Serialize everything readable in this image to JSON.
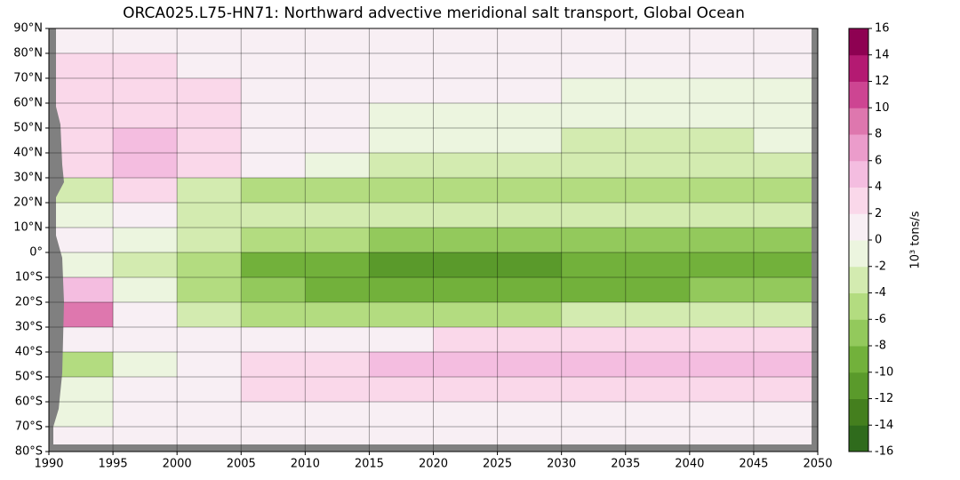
{
  "chart_data": {
    "type": "heatmap",
    "title": "ORCA025.L75-HN71: Northward advective meridional salt transport, Global Ocean",
    "x": [
      1990,
      1995,
      2000,
      2005,
      2010,
      2015,
      2020,
      2025,
      2030,
      2035,
      2040,
      2045,
      2050
    ],
    "y": [
      90,
      80,
      70,
      60,
      50,
      40,
      30,
      20,
      10,
      0,
      -10,
      -20,
      -30,
      -40,
      -50,
      -60,
      -70,
      -80
    ],
    "values": [
      [
        1,
        1,
        1,
        0.5,
        0.5,
        0.5,
        0.5,
        0.5,
        0,
        0,
        0,
        0
      ],
      [
        2,
        2,
        1,
        1,
        1,
        0.5,
        0.5,
        0,
        0,
        0,
        0,
        0
      ],
      [
        2,
        3,
        2,
        1,
        1,
        0,
        0,
        0,
        -1,
        -1,
        -1,
        -1
      ],
      [
        3,
        3,
        2,
        1,
        0,
        -1,
        -1,
        -1,
        -2,
        -2,
        -2,
        -1
      ],
      [
        3,
        4,
        3,
        1,
        0,
        -2,
        -2,
        -2,
        -3,
        -3,
        -3,
        -2
      ],
      [
        3,
        5,
        3,
        0,
        -2,
        -3,
        -3,
        -3,
        -3,
        -4,
        -3,
        -3
      ],
      [
        -4,
        2,
        -4,
        -5,
        -6,
        -5,
        -5,
        -6,
        -6,
        -6,
        -6,
        -6
      ],
      [
        -2,
        1,
        -3,
        -4,
        -4,
        -4,
        -4,
        -4,
        -4,
        -4,
        -4,
        -4
      ],
      [
        0,
        -1,
        -3,
        -5,
        -6,
        -7,
        -7,
        -8,
        -7,
        -7,
        -7,
        -7
      ],
      [
        -2,
        -4,
        -6,
        -9,
        -10,
        -11,
        -11,
        -11,
        -10,
        -10,
        -9,
        -9
      ],
      [
        4,
        -2,
        -6,
        -8,
        -10,
        -10,
        -10,
        -10,
        -9,
        -9,
        -8,
        -8
      ],
      [
        8,
        1,
        -3,
        -5,
        -6,
        -5,
        -5,
        -5,
        -4,
        -4,
        -3,
        -3
      ],
      [
        1,
        0,
        0,
        0,
        1,
        1,
        2,
        2,
        2,
        2,
        2,
        2
      ],
      [
        -5,
        -1,
        1,
        2,
        3,
        4,
        5,
        5,
        4,
        4,
        4,
        4
      ],
      [
        -2,
        0,
        1,
        2,
        3,
        3,
        3,
        3,
        3,
        3,
        3,
        3
      ],
      [
        -1,
        0,
        0,
        1,
        1,
        1,
        1,
        1,
        1,
        1,
        1,
        1
      ],
      [
        0,
        0,
        0,
        0,
        0,
        0,
        0,
        0,
        0,
        0,
        0,
        0
      ]
    ],
    "xlim": [
      1990,
      2050
    ],
    "xticks": [
      1990,
      1995,
      2000,
      2005,
      2010,
      2015,
      2020,
      2025,
      2030,
      2035,
      2040,
      2045,
      2050
    ],
    "ylim": [
      -80,
      90
    ],
    "yticks": [
      {
        "value": 90,
        "label": "90°N"
      },
      {
        "value": 80,
        "label": "80°N"
      },
      {
        "value": 70,
        "label": "70°N"
      },
      {
        "value": 60,
        "label": "60°N"
      },
      {
        "value": 50,
        "label": "50°N"
      },
      {
        "value": 40,
        "label": "40°N"
      },
      {
        "value": 30,
        "label": "30°N"
      },
      {
        "value": 20,
        "label": "20°N"
      },
      {
        "value": 10,
        "label": "10°N"
      },
      {
        "value": 0,
        "label": "0°"
      },
      {
        "value": -10,
        "label": "10°S"
      },
      {
        "value": -20,
        "label": "20°S"
      },
      {
        "value": -30,
        "label": "30°S"
      },
      {
        "value": -40,
        "label": "40°S"
      },
      {
        "value": -50,
        "label": "50°S"
      },
      {
        "value": -60,
        "label": "60°S"
      },
      {
        "value": -70,
        "label": "70°S"
      },
      {
        "value": -80,
        "label": "80°S"
      }
    ],
    "grid": true,
    "colorbar_label": "10³ tons/s",
    "colorbar_ticks": [
      -16,
      -14,
      -12,
      -10,
      -8,
      -6,
      -4,
      -2,
      0,
      2,
      4,
      6,
      8,
      10,
      12,
      14,
      16
    ],
    "colors": [
      "#2f6b1c",
      "#447f1e",
      "#5a9a2b",
      "#72b13b",
      "#93c95c",
      "#b3dc80",
      "#d3ebb0",
      "#ecf5df",
      "#f8eff4",
      "#fad8ea",
      "#f4bde0",
      "#eb9ccb",
      "#de77ae",
      "#cd4592",
      "#b41a72",
      "#8e0152"
    ]
  }
}
